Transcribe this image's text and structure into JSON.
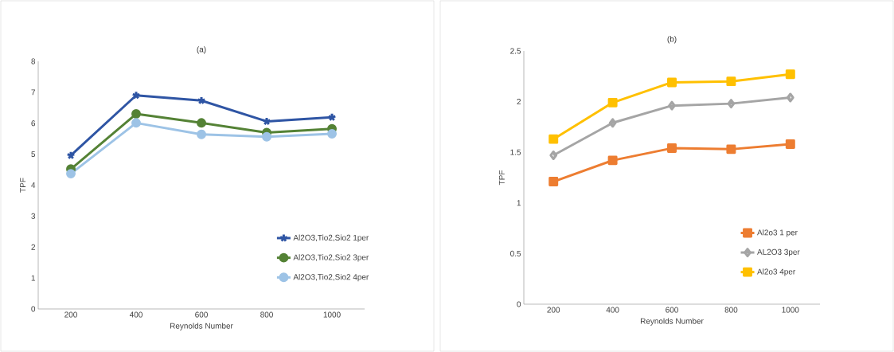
{
  "chart_data": [
    {
      "type": "line",
      "title": "(a)",
      "xlabel": "Reynolds Number",
      "ylabel": "TPF",
      "categories": [
        "200",
        "400",
        "600",
        "800",
        "1000"
      ],
      "ylim": [
        0,
        8
      ],
      "yticks": [
        0,
        1,
        2,
        3,
        4,
        5,
        6,
        7,
        8
      ],
      "legend": "right",
      "series": [
        {
          "name": "Al2O3,Tio2,Sio2 1per",
          "color": "#2f55a4",
          "marker": "cross",
          "values": [
            4.96,
            6.9,
            6.73,
            6.06,
            6.19
          ]
        },
        {
          "name": "Al2O3,Tio2,Sio2 3per",
          "color": "#548235",
          "marker": "circle",
          "values": [
            4.52,
            6.3,
            6.01,
            5.7,
            5.82
          ]
        },
        {
          "name": "Al2O3,Tio2,Sio2 4per",
          "color": "#9dc3e6",
          "marker": "circle",
          "values": [
            4.37,
            6.01,
            5.64,
            5.56,
            5.66
          ]
        }
      ]
    },
    {
      "type": "line",
      "title": "(b)",
      "xlabel": "Reynolds Number",
      "ylabel": "TPF",
      "categories": [
        "200",
        "400",
        "600",
        "800",
        "1000"
      ],
      "ylim": [
        0,
        2.5
      ],
      "yticks": [
        0,
        0.5,
        1,
        1.5,
        2,
        2.5
      ],
      "legend": "right",
      "series": [
        {
          "name": "Al2o3 1 per",
          "color": "#ed7d31",
          "marker": "square",
          "values": [
            1.21,
            1.42,
            1.54,
            1.53,
            1.58
          ]
        },
        {
          "name": "AL2O3 3per",
          "color": "#a5a5a5",
          "marker": "diamond",
          "values": [
            1.47,
            1.79,
            1.96,
            1.98,
            2.04
          ]
        },
        {
          "name": "Al2o3 4per",
          "color": "#ffc000",
          "marker": "square",
          "values": [
            1.63,
            1.99,
            2.19,
            2.2,
            2.27
          ]
        }
      ]
    }
  ]
}
